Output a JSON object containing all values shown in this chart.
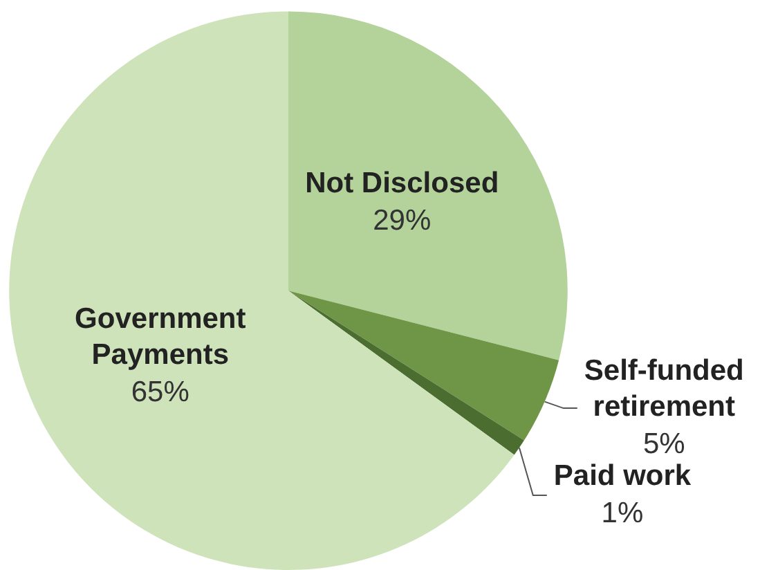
{
  "chart_data": {
    "type": "pie",
    "categories": [
      "Not Disclosed",
      "Self-funded retirement",
      "Paid work",
      "Government Payments"
    ],
    "values": [
      29,
      5,
      1,
      65
    ],
    "value_labels": [
      "29%",
      "5%",
      "1%",
      "65%"
    ],
    "colors": [
      "#b3d39a",
      "#6f9646",
      "#4b6d2f",
      "#cfe3ba"
    ],
    "legend": false
  }
}
